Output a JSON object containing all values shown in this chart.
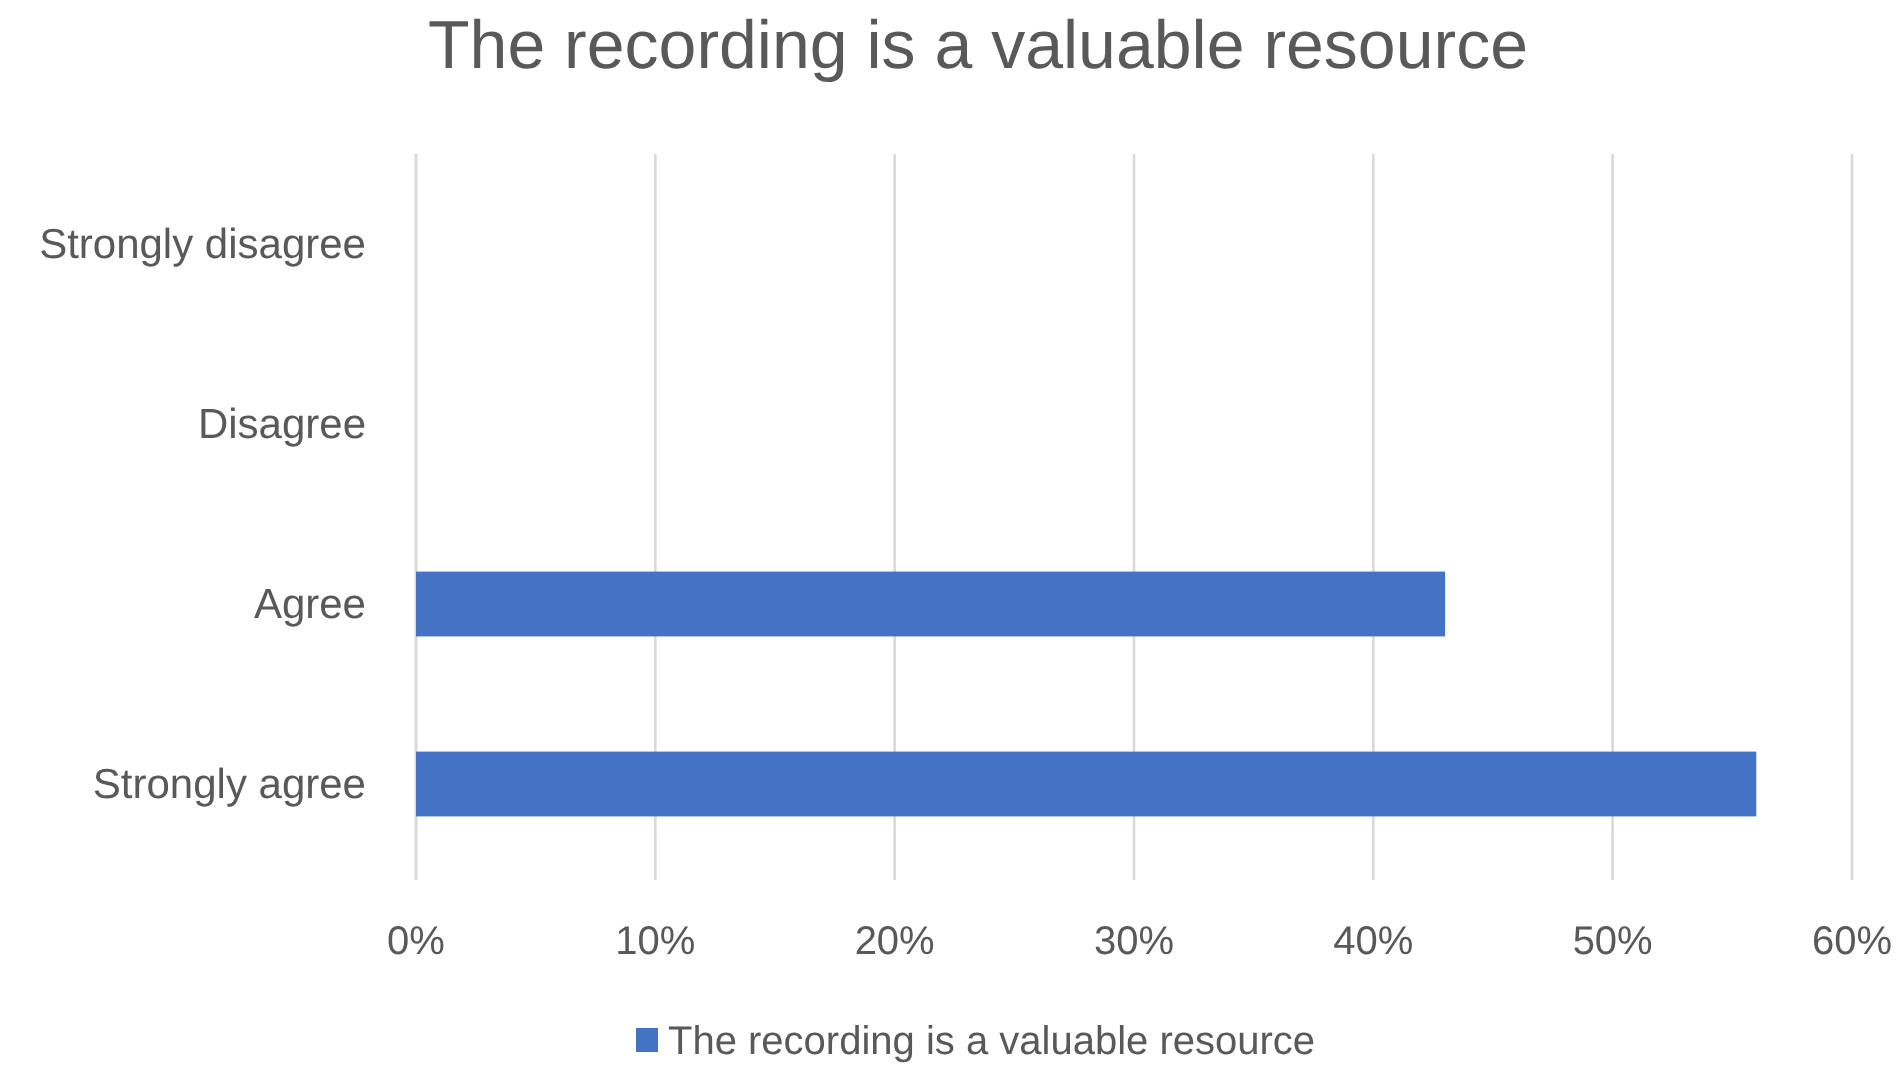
{
  "chart_data": {
    "type": "bar",
    "orientation": "horizontal",
    "title": "The recording is a valuable resource",
    "categories": [
      "Strongly disagree",
      "Disagree",
      "Agree",
      "Strongly agree"
    ],
    "series": [
      {
        "name": "The recording is a valuable resource",
        "color": "#4472c4",
        "values": [
          0,
          0,
          43,
          56
        ]
      }
    ],
    "xlim": [
      0,
      60
    ],
    "xticks": [
      {
        "value": 0,
        "label": "0%"
      },
      {
        "value": 10,
        "label": "10%"
      },
      {
        "value": 20,
        "label": "20%"
      },
      {
        "value": 30,
        "label": "30%"
      },
      {
        "value": 40,
        "label": "40%"
      },
      {
        "value": 50,
        "label": "50%"
      },
      {
        "value": 60,
        "label": "60%"
      }
    ],
    "grid": "x",
    "legend": "bottom"
  }
}
